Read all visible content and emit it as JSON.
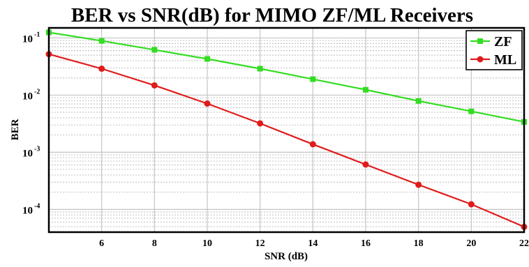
{
  "chart_data": {
    "type": "line",
    "title": "BER vs SNR(dB) for MIMO ZF/ML Receivers",
    "xlabel": "SNR (dB)",
    "ylabel": "BER",
    "xlim": [
      4,
      22
    ],
    "ylim": [
      4e-05,
      0.15
    ],
    "yscale": "log",
    "xticks": [
      6,
      8,
      10,
      12,
      14,
      16,
      18,
      20,
      22
    ],
    "x_tick_labels": [
      "6",
      "8",
      "10",
      "12",
      "14",
      "16",
      "18",
      "20",
      "22"
    ],
    "yticks": [
      0.0001,
      0.001,
      0.01,
      0.1
    ],
    "y_tick_labels": [
      {
        "base": "10",
        "exp": "-4"
      },
      {
        "base": "10",
        "exp": "-3"
      },
      {
        "base": "10",
        "exp": "-2"
      },
      {
        "base": "10",
        "exp": "-1"
      }
    ],
    "grid": true,
    "minor_grid": true,
    "legend_position": "top-right",
    "x": [
      4,
      6,
      8,
      10,
      12,
      14,
      16,
      18,
      20,
      22
    ],
    "series": [
      {
        "name": "ZF",
        "color": "#33dd22",
        "values": [
          0.125,
          0.089,
          0.062,
          0.043,
          0.029,
          0.019,
          0.0124,
          0.0079,
          0.0052,
          0.0034
        ]
      },
      {
        "name": "ML",
        "color": "#e01b1b",
        "values": [
          0.052,
          0.029,
          0.0148,
          0.0071,
          0.0032,
          0.00138,
          0.00061,
          0.00027,
          0.000123,
          4.95e-05
        ]
      }
    ]
  }
}
